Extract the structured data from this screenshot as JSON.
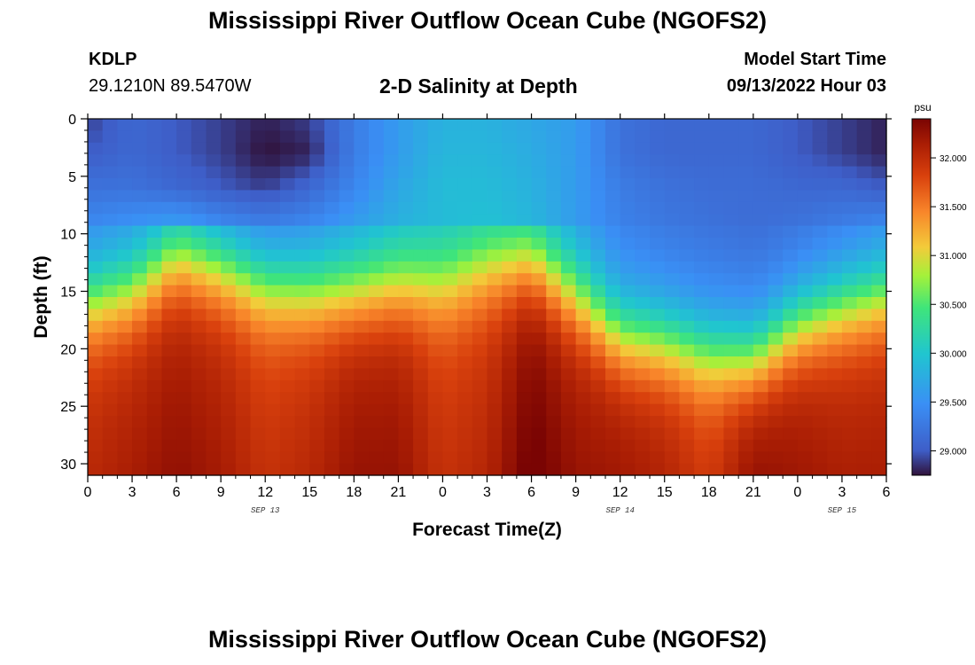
{
  "header": {
    "title": "Mississippi River Outflow Ocean Cube (NGOFS2)",
    "station": "KDLP",
    "coords": "29.1210N  89.5470W",
    "subtitle": "2-D Salinity at Depth",
    "model_start_label": "Model Start Time",
    "model_start_value": "09/13/2022 Hour 03"
  },
  "footer": {
    "title": "Mississippi River Outflow Ocean Cube (NGOFS2)"
  },
  "chart_data": {
    "type": "heatmap",
    "title": "2-D Salinity at Depth",
    "xlabel": "Forecast Time(Z)",
    "ylabel": "Depth (ft)",
    "x_ticks": [
      "0",
      "3",
      "6",
      "9",
      "12",
      "15",
      "18",
      "21",
      "0",
      "3",
      "6",
      "9",
      "12",
      "15",
      "18",
      "21",
      "0",
      "3",
      "6"
    ],
    "x_hours_range": [
      0,
      54
    ],
    "date_labels": [
      {
        "hour": 12,
        "label": "SEP 13"
      },
      {
        "hour": 36,
        "label": "SEP 14"
      },
      {
        "hour": 51,
        "label": "SEP 15"
      }
    ],
    "y_ticks": [
      0,
      5,
      10,
      15,
      20,
      25,
      30
    ],
    "ylim": [
      0,
      31
    ],
    "y_inverted": true,
    "colorbar": {
      "unit": "psu",
      "ticks": [
        "29.000",
        "29.500",
        "30.000",
        "30.500",
        "31.000",
        "31.500",
        "32.000"
      ],
      "range": [
        28.75,
        32.4
      ]
    },
    "grid_rows": 30,
    "hours": [
      0,
      3,
      6,
      9,
      12,
      15,
      18,
      21,
      24,
      27,
      30,
      33,
      36,
      39,
      42,
      45,
      48,
      51,
      54
    ],
    "top_depths": [
      0,
      3,
      6,
      9
    ],
    "top_salinity": [
      [
        28.9,
        29.1,
        29.0,
        28.9,
        28.8,
        28.9,
        29.3,
        29.6,
        29.8,
        29.8,
        29.7,
        29.6,
        29.2,
        29.1,
        29.1,
        29.1,
        29.0,
        28.9,
        28.8
      ],
      [
        29.0,
        29.1,
        29.0,
        28.9,
        28.75,
        28.8,
        29.3,
        29.6,
        29.85,
        29.85,
        29.75,
        29.6,
        29.2,
        29.1,
        29.1,
        29.1,
        29.0,
        28.9,
        28.8
      ],
      [
        29.2,
        29.2,
        29.1,
        29.0,
        28.9,
        29.1,
        29.4,
        29.7,
        29.9,
        29.9,
        29.8,
        29.6,
        29.3,
        29.2,
        29.15,
        29.15,
        29.1,
        29.1,
        29.0
      ],
      [
        29.4,
        29.5,
        29.6,
        29.4,
        29.3,
        29.4,
        29.6,
        29.8,
        29.9,
        29.95,
        29.85,
        29.6,
        29.35,
        29.25,
        29.2,
        29.15,
        29.2,
        29.3,
        29.4
      ]
    ],
    "transition_depth": [
      16.0,
      15.0,
      12.0,
      13.0,
      14.5,
      15.0,
      15.0,
      14.5,
      14.5,
      13.0,
      12.5,
      15.5,
      19.0,
      19.5,
      20.5,
      21.0,
      18.0,
      16.5,
      15.5
    ],
    "deep_salinity": [
      31.9,
      32.0,
      32.1,
      32.0,
      31.8,
      31.9,
      32.1,
      32.1,
      31.8,
      31.9,
      32.3,
      32.1,
      32.1,
      32.0,
      31.8,
      32.2,
      32.1,
      32.0,
      32.0
    ]
  }
}
